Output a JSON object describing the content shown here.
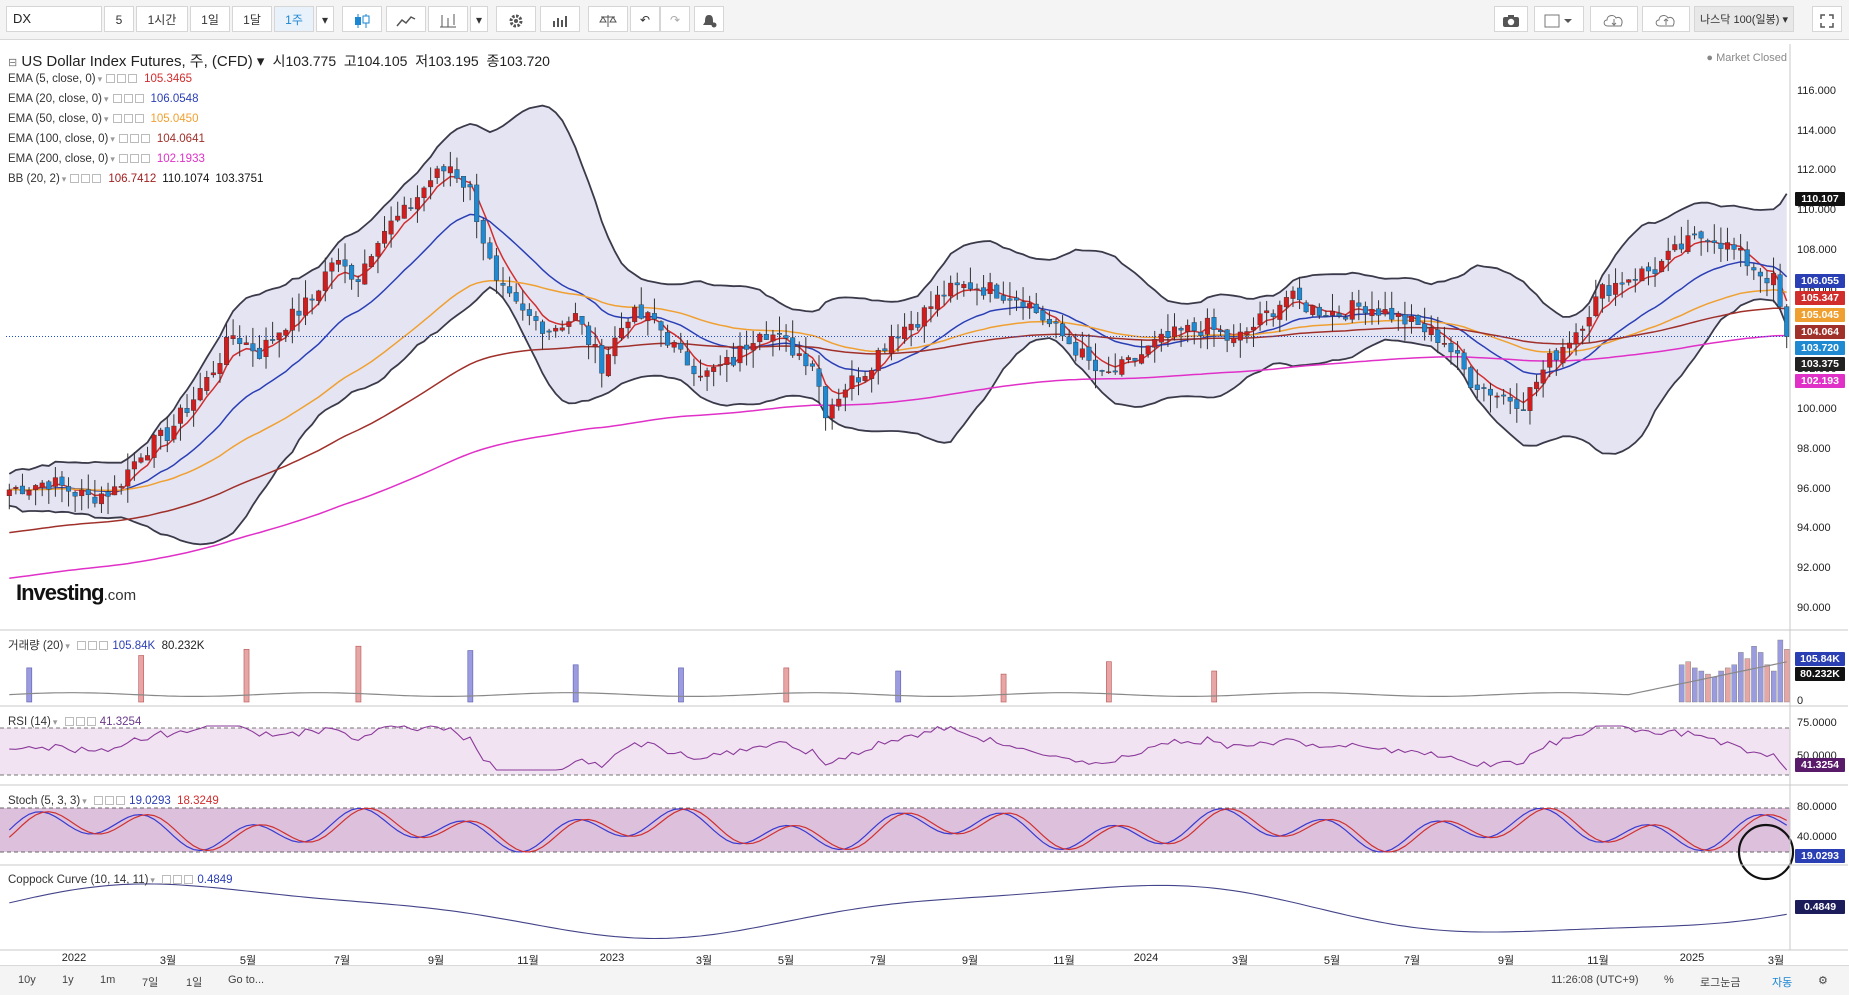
{
  "toolbar": {
    "symbol": "DX",
    "intervals": [
      "5",
      "1시간",
      "1일",
      "1달",
      "1주"
    ],
    "active_interval": "1주",
    "watchlist": "나스닥 100(일봉)"
  },
  "header": {
    "title": "US Dollar Index Futures, 주, (CFD)",
    "open_label": "시",
    "open": "103.775",
    "high_label": "고",
    "high": "104.105",
    "low_label": "저",
    "low": "103.195",
    "close_label": "종",
    "close": "103.720",
    "market_status": "Market Closed"
  },
  "indicators": [
    {
      "name": "EMA (5, close, 0)",
      "value": "105.3465",
      "color": "#d22d2d"
    },
    {
      "name": "EMA (20, close, 0)",
      "value": "106.0548",
      "color": "#2b3fb5"
    },
    {
      "name": "EMA (50, close, 0)",
      "value": "105.0450",
      "color": "#f0a030"
    },
    {
      "name": "EMA (100, close, 0)",
      "value": "104.0641",
      "color": "#a0302a"
    },
    {
      "name": "EMA (200, close, 0)",
      "value": "102.1933",
      "color": "#e030c8"
    },
    {
      "name": "BB (20, 2)",
      "value": "106.7412",
      "value2": "110.1074",
      "value3": "103.3751",
      "color": "#a02020"
    }
  ],
  "panes": {
    "volume": {
      "name": "거래량 (20)",
      "v1": "105.84K",
      "v2": "80.232K",
      "tag1": "105.84K",
      "tag2": "80.232K",
      "zero": "0"
    },
    "rsi": {
      "name": "RSI (14)",
      "value": "41.3254",
      "levels": [
        "75.0000",
        "50.0000"
      ],
      "tag": "41.3254"
    },
    "stoch": {
      "name": "Stoch (5, 3, 3)",
      "k": "19.0293",
      "d": "18.3249",
      "levels": [
        "80.0000",
        "40.0000"
      ],
      "tag": "19.0293"
    },
    "coppock": {
      "name": "Coppock Curve (10, 14, 11)",
      "value": "0.4849",
      "tag": "0.4849"
    }
  },
  "price_tags": [
    {
      "label": "110.107",
      "color": "#111111"
    },
    {
      "label": "106.055",
      "color": "#2b3fb5"
    },
    {
      "label": "105.347",
      "color": "#d22d2d"
    },
    {
      "label": "105.045",
      "color": "#f0a030"
    },
    {
      "label": "104.064",
      "color": "#a0302a"
    },
    {
      "label": "103.720",
      "color": "#1f8ad2"
    },
    {
      "label": "103.375",
      "color": "#222222"
    },
    {
      "label": "102.193",
      "color": "#e030c8"
    }
  ],
  "chart_data": {
    "type": "candlestick",
    "title": "US Dollar Index Futures, 주, (CFD)",
    "ylim": [
      90,
      117
    ],
    "yticks": [
      "116.000",
      "114.000",
      "112.000",
      "110.000",
      "108.000",
      "106.000",
      "104.000",
      "102.000",
      "100.000",
      "98.000",
      "96.000",
      "94.000",
      "92.000",
      "90.000"
    ],
    "xticks": [
      "2022",
      "3월",
      "5월",
      "7월",
      "9월",
      "11월",
      "2023",
      "3월",
      "5월",
      "7월",
      "9월",
      "11월",
      "2024",
      "3월",
      "5월",
      "7월",
      "9월",
      "11월",
      "2025",
      "3월"
    ],
    "close_anchors": [
      [
        0,
        96.0
      ],
      [
        6,
        96.4
      ],
      [
        12,
        95.6
      ],
      [
        16,
        96.0
      ],
      [
        20,
        97.9
      ],
      [
        24,
        98.8
      ],
      [
        30,
        101.5
      ],
      [
        34,
        103.8
      ],
      [
        38,
        102.9
      ],
      [
        42,
        104.4
      ],
      [
        46,
        105.6
      ],
      [
        49,
        107.5
      ],
      [
        53,
        106.7
      ],
      [
        56,
        108.8
      ],
      [
        60,
        109.9
      ],
      [
        64,
        111.6
      ],
      [
        67,
        112.3
      ],
      [
        70,
        111.0
      ],
      [
        74,
        106.2
      ],
      [
        78,
        104.8
      ],
      [
        82,
        104.1
      ],
      [
        86,
        104.7
      ],
      [
        90,
        102.3
      ],
      [
        94,
        104.8
      ],
      [
        98,
        104.5
      ],
      [
        102,
        102.7
      ],
      [
        106,
        101.8
      ],
      [
        110,
        102.5
      ],
      [
        114,
        104.2
      ],
      [
        118,
        103.3
      ],
      [
        122,
        102.4
      ],
      [
        124,
        100.0
      ],
      [
        127,
        101.2
      ],
      [
        130,
        102.0
      ],
      [
        134,
        103.8
      ],
      [
        138,
        104.6
      ],
      [
        142,
        105.9
      ],
      [
        146,
        106.3
      ],
      [
        150,
        106.0
      ],
      [
        154,
        105.6
      ],
      [
        158,
        104.3
      ],
      [
        162,
        103.1
      ],
      [
        166,
        101.6
      ],
      [
        170,
        102.3
      ],
      [
        174,
        103.3
      ],
      [
        178,
        103.9
      ],
      [
        182,
        104.2
      ],
      [
        186,
        103.4
      ],
      [
        190,
        104.5
      ],
      [
        194,
        105.7
      ],
      [
        198,
        105.1
      ],
      [
        202,
        104.9
      ],
      [
        206,
        105.3
      ],
      [
        210,
        104.8
      ],
      [
        214,
        104.2
      ],
      [
        218,
        103.5
      ],
      [
        222,
        101.5
      ],
      [
        226,
        100.8
      ],
      [
        230,
        100.4
      ],
      [
        234,
        102.5
      ],
      [
        238,
        104.0
      ],
      [
        242,
        106.0
      ],
      [
        246,
        106.7
      ],
      [
        250,
        107.1
      ],
      [
        254,
        108.2
      ],
      [
        258,
        108.9
      ],
      [
        262,
        108.0
      ],
      [
        266,
        106.9
      ],
      [
        268,
        106.5
      ],
      [
        270,
        103.7
      ]
    ],
    "volume_spikes": [
      [
        3,
        0.55,
        "b"
      ],
      [
        20,
        0.75,
        "r"
      ],
      [
        36,
        0.85,
        "r"
      ],
      [
        53,
        0.9,
        "r"
      ],
      [
        70,
        0.83,
        "b"
      ],
      [
        86,
        0.6,
        "b"
      ],
      [
        102,
        0.55,
        "b"
      ],
      [
        118,
        0.55,
        "r"
      ],
      [
        135,
        0.5,
        "b"
      ],
      [
        151,
        0.45,
        "r"
      ],
      [
        167,
        0.65,
        "r"
      ],
      [
        183,
        0.5,
        "r"
      ]
    ],
    "volume_recent_bars": [
      0.6,
      0.65,
      0.55,
      0.5,
      0.45,
      0.4,
      0.5,
      0.55,
      0.6,
      0.8,
      0.7,
      0.9,
      0.8,
      0.6,
      0.5,
      1.0,
      0.85
    ],
    "watermark": "Investing.com"
  },
  "statusbar": {
    "ranges": [
      "10y",
      "1y",
      "1m",
      "7일",
      "1일"
    ],
    "goto": "Go to...",
    "time": "11:26:08 (UTC+9)",
    "pct": "%",
    "log": "로그눈금",
    "auto": "자동"
  }
}
